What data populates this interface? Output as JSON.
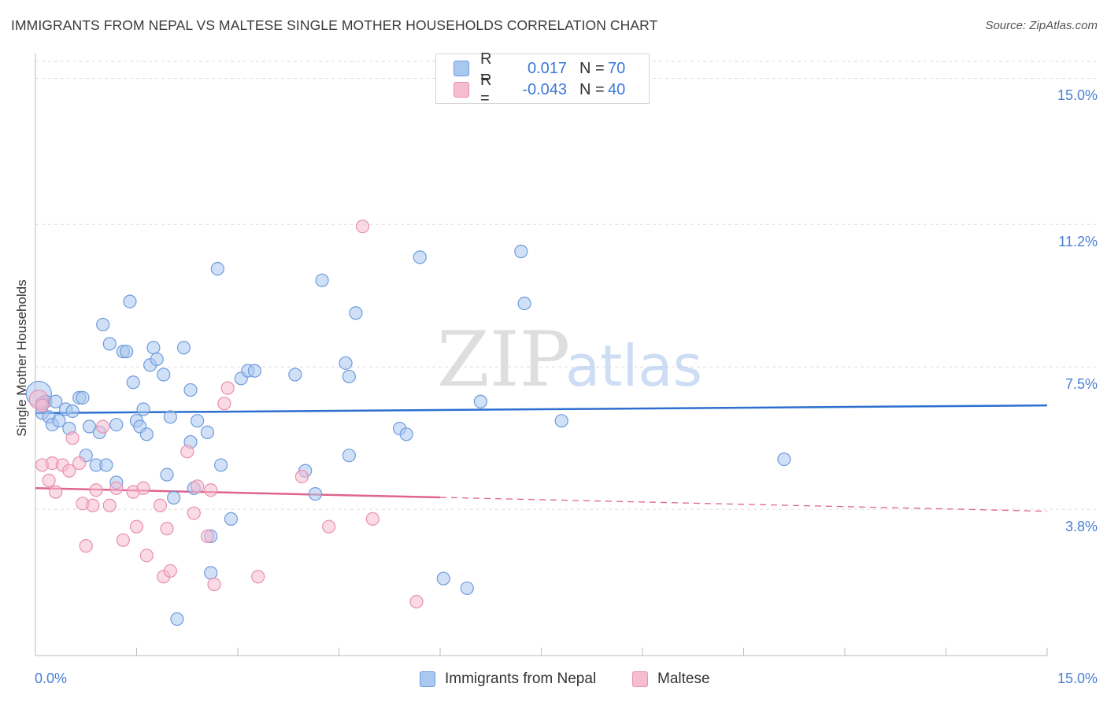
{
  "title": "IMMIGRANTS FROM NEPAL VS MALTESE SINGLE MOTHER HOUSEHOLDS CORRELATION CHART",
  "source": "Source: ZipAtlas.com",
  "watermark": {
    "zip": "ZIP",
    "atlas": "atlas"
  },
  "legend": {
    "r_label": "R =",
    "n_label": "N =",
    "nepal": {
      "r": "0.017",
      "n": "70"
    },
    "maltese": {
      "r": "-0.043",
      "n": "40"
    }
  },
  "colors": {
    "nepal_fill": "#a9c8f0",
    "nepal_stroke": "#6f9bdc",
    "nepal_line": "#2d6fcf",
    "maltese_fill": "#f6bcd0",
    "maltese_stroke": "#e890ae",
    "maltese_line": "#e0648e",
    "tick_text": "#4a7fd4",
    "grid": "#dcdcdc"
  },
  "chart_data": {
    "type": "scatter",
    "title": "IMMIGRANTS FROM NEPAL VS MALTESE SINGLE MOTHER HOUSEHOLDS CORRELATION CHART",
    "xlabel": "",
    "ylabel": "Single Mother Households",
    "xlim": [
      0,
      15
    ],
    "ylim": [
      0,
      15.5
    ],
    "x_tick_labels": [
      "0.0%",
      "15.0%"
    ],
    "y_ticks": [
      3.8,
      7.5,
      11.2,
      15.0
    ],
    "y_tick_labels": [
      "3.8%",
      "7.5%",
      "11.2%",
      "15.0%"
    ],
    "series": [
      {
        "name": "Immigrants from Nepal",
        "r": 0.017,
        "n": 70,
        "trend": {
          "x": [
            0,
            15
          ],
          "y": [
            6.3,
            6.5
          ],
          "dashed_from": null
        },
        "points": [
          [
            0.05,
            6.8
          ],
          [
            0.1,
            6.3
          ],
          [
            0.15,
            6.6
          ],
          [
            0.2,
            6.2
          ],
          [
            0.25,
            6.0
          ],
          [
            0.3,
            6.6
          ],
          [
            0.35,
            6.1
          ],
          [
            0.45,
            6.4
          ],
          [
            0.5,
            5.9
          ],
          [
            0.55,
            6.35
          ],
          [
            0.65,
            6.7
          ],
          [
            0.7,
            6.7
          ],
          [
            0.75,
            5.2
          ],
          [
            0.8,
            5.95
          ],
          [
            0.9,
            4.95
          ],
          [
            0.95,
            5.8
          ],
          [
            1.0,
            8.6
          ],
          [
            1.05,
            4.95
          ],
          [
            1.1,
            8.1
          ],
          [
            1.2,
            6.0
          ],
          [
            1.2,
            4.5
          ],
          [
            1.3,
            7.9
          ],
          [
            1.35,
            7.9
          ],
          [
            1.4,
            9.2
          ],
          [
            1.45,
            7.1
          ],
          [
            1.5,
            6.1
          ],
          [
            1.55,
            5.95
          ],
          [
            1.6,
            6.4
          ],
          [
            1.65,
            5.75
          ],
          [
            1.7,
            7.55
          ],
          [
            1.75,
            8.0
          ],
          [
            1.8,
            7.7
          ],
          [
            1.9,
            7.3
          ],
          [
            1.95,
            4.7
          ],
          [
            2.0,
            6.2
          ],
          [
            2.05,
            4.1
          ],
          [
            2.1,
            0.95
          ],
          [
            2.2,
            8.0
          ],
          [
            2.3,
            5.55
          ],
          [
            2.3,
            6.9
          ],
          [
            2.35,
            4.35
          ],
          [
            2.4,
            6.1
          ],
          [
            2.55,
            5.8
          ],
          [
            2.6,
            3.1
          ],
          [
            2.6,
            2.15
          ],
          [
            2.7,
            10.05
          ],
          [
            2.75,
            4.95
          ],
          [
            2.9,
            3.55
          ],
          [
            3.05,
            7.2
          ],
          [
            3.15,
            7.4
          ],
          [
            3.25,
            7.4
          ],
          [
            3.85,
            7.3
          ],
          [
            4.0,
            4.8
          ],
          [
            4.15,
            4.2
          ],
          [
            4.25,
            9.75
          ],
          [
            4.6,
            7.6
          ],
          [
            4.65,
            7.25
          ],
          [
            4.65,
            5.2
          ],
          [
            4.75,
            8.9
          ],
          [
            5.4,
            5.9
          ],
          [
            5.5,
            5.75
          ],
          [
            5.7,
            10.35
          ],
          [
            6.05,
            2.0
          ],
          [
            6.4,
            1.75
          ],
          [
            6.6,
            6.6
          ],
          [
            7.2,
            10.5
          ],
          [
            7.25,
            9.15
          ],
          [
            7.8,
            6.1
          ],
          [
            11.1,
            5.1
          ],
          [
            0.1,
            6.55
          ]
        ]
      },
      {
        "name": "Maltese",
        "r": -0.043,
        "n": 40,
        "trend": {
          "x": [
            0,
            15
          ],
          "y": [
            4.35,
            3.75
          ],
          "dashed_from": 6.0
        },
        "points": [
          [
            0.05,
            6.65
          ],
          [
            0.1,
            6.5
          ],
          [
            0.1,
            4.95
          ],
          [
            0.2,
            4.55
          ],
          [
            0.25,
            5.0
          ],
          [
            0.3,
            4.25
          ],
          [
            0.4,
            4.95
          ],
          [
            0.5,
            4.8
          ],
          [
            0.55,
            5.65
          ],
          [
            0.65,
            5.0
          ],
          [
            0.7,
            3.95
          ],
          [
            0.75,
            2.85
          ],
          [
            0.85,
            3.9
          ],
          [
            0.9,
            4.3
          ],
          [
            1.0,
            5.95
          ],
          [
            1.1,
            3.9
          ],
          [
            1.2,
            4.35
          ],
          [
            1.3,
            3.0
          ],
          [
            1.45,
            4.25
          ],
          [
            1.5,
            3.35
          ],
          [
            1.6,
            4.35
          ],
          [
            1.65,
            2.6
          ],
          [
            1.85,
            3.9
          ],
          [
            1.9,
            2.05
          ],
          [
            1.95,
            3.3
          ],
          [
            2.0,
            2.2
          ],
          [
            2.25,
            5.3
          ],
          [
            2.35,
            3.7
          ],
          [
            2.4,
            4.4
          ],
          [
            2.55,
            3.1
          ],
          [
            2.6,
            4.3
          ],
          [
            2.65,
            1.85
          ],
          [
            2.8,
            6.55
          ],
          [
            2.85,
            6.95
          ],
          [
            3.3,
            2.05
          ],
          [
            3.95,
            4.65
          ],
          [
            4.35,
            3.35
          ],
          [
            4.85,
            11.15
          ],
          [
            5.0,
            3.55
          ],
          [
            5.65,
            1.4
          ]
        ]
      }
    ]
  },
  "bottom_legend": {
    "nepal_label": "Immigrants from Nepal",
    "maltese_label": "Maltese"
  }
}
